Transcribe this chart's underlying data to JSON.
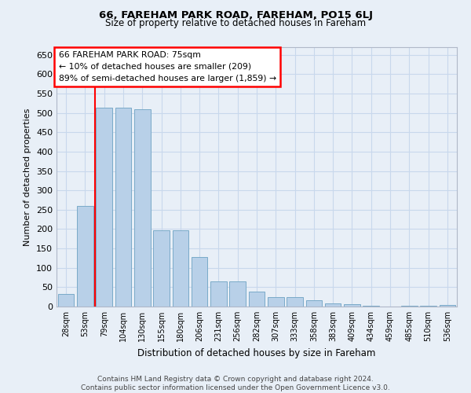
{
  "title1": "66, FAREHAM PARK ROAD, FAREHAM, PO15 6LJ",
  "title2": "Size of property relative to detached houses in Fareham",
  "xlabel": "Distribution of detached houses by size in Fareham",
  "ylabel": "Number of detached properties",
  "categories": [
    "28sqm",
    "53sqm",
    "79sqm",
    "104sqm",
    "130sqm",
    "155sqm",
    "180sqm",
    "206sqm",
    "231sqm",
    "256sqm",
    "282sqm",
    "307sqm",
    "333sqm",
    "358sqm",
    "383sqm",
    "409sqm",
    "434sqm",
    "459sqm",
    "485sqm",
    "510sqm",
    "536sqm"
  ],
  "values": [
    32,
    260,
    513,
    513,
    510,
    197,
    197,
    128,
    65,
    65,
    38,
    24,
    24,
    16,
    8,
    7,
    3,
    0,
    3,
    3,
    5
  ],
  "bar_color": "#b8d0e8",
  "bar_edge_color": "#7aaac8",
  "vline_x": 1.5,
  "vline_color": "red",
  "annotation_text": "66 FAREHAM PARK ROAD: 75sqm\n← 10% of detached houses are smaller (209)\n89% of semi-detached houses are larger (1,859) →",
  "annotation_box_color": "white",
  "annotation_box_edge_color": "red",
  "ylim": [
    0,
    670
  ],
  "yticks": [
    0,
    50,
    100,
    150,
    200,
    250,
    300,
    350,
    400,
    450,
    500,
    550,
    600,
    650
  ],
  "grid_color": "#c8d8ec",
  "footer": "Contains HM Land Registry data © Crown copyright and database right 2024.\nContains public sector information licensed under the Open Government Licence v3.0.",
  "bg_color": "#e8eff7",
  "title1_fontsize": 9.5,
  "title2_fontsize": 8.5,
  "xlabel_fontsize": 8.5,
  "ylabel_fontsize": 8,
  "xtick_fontsize": 7,
  "ytick_fontsize": 8,
  "footer_fontsize": 6.5,
  "annot_fontsize": 7.8
}
